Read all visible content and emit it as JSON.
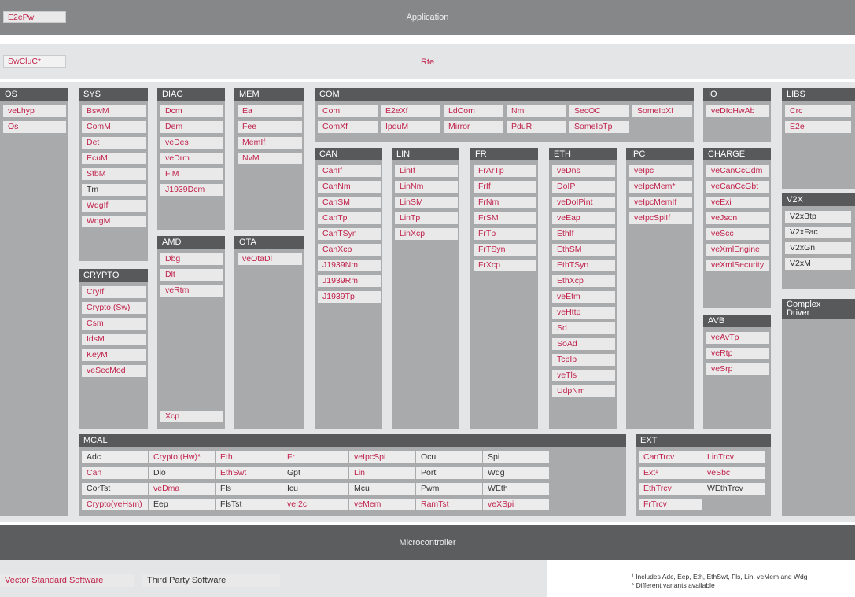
{
  "colors": {
    "vector": "#c0234b",
    "third_party": "#333333",
    "header": "#58595b",
    "panel": "#a8aaac",
    "band_dark": "#858789",
    "band_light": "#e4e5e6",
    "micro": "#5b5d5f"
  },
  "bands": {
    "application": {
      "title": "Application",
      "corner": "E2ePw"
    },
    "rte": {
      "title": "Rte",
      "corner": "SwCluC*"
    },
    "microcontroller": {
      "title": "Microcontroller"
    }
  },
  "legend": {
    "vector": "Vector Standard Software",
    "third_party": "Third Party Software"
  },
  "footnotes": [
    "¹ Includes Adc, Eep, Eth, EthSwt, Fls, Lin, veMem and Wdg",
    "* Different variants available"
  ],
  "modules": {
    "OS": {
      "header": "OS",
      "items": [
        [
          "veLhyp",
          "v"
        ],
        [
          "Os",
          "v"
        ]
      ]
    },
    "SYS": {
      "header": "SYS",
      "items": [
        [
          "BswM",
          "v"
        ],
        [
          "ComM",
          "v"
        ],
        [
          "Det",
          "v"
        ],
        [
          "EcuM",
          "v"
        ],
        [
          "StbM",
          "v"
        ],
        [
          "Tm",
          "t"
        ],
        [
          "WdgIf",
          "v"
        ],
        [
          "WdgM",
          "v"
        ]
      ]
    },
    "CRYPTO": {
      "header": "CRYPTO",
      "items": [
        [
          "CryIf",
          "v"
        ],
        [
          "Crypto (Sw)",
          "v"
        ],
        [
          "Csm",
          "v"
        ],
        [
          "IdsM",
          "v"
        ],
        [
          "KeyM",
          "v"
        ],
        [
          "veSecMod",
          "v"
        ]
      ]
    },
    "DIAG": {
      "header": "DIAG",
      "items": [
        [
          "Dcm",
          "v"
        ],
        [
          "Dem",
          "v"
        ],
        [
          "veDes",
          "v"
        ],
        [
          "veDrm",
          "v"
        ],
        [
          "FiM",
          "v"
        ],
        [
          "J1939Dcm",
          "v"
        ]
      ]
    },
    "AMD": {
      "header": "AMD",
      "items": [
        [
          "Dbg",
          "v"
        ],
        [
          "Dlt",
          "v"
        ],
        [
          "veRtm",
          "v"
        ]
      ],
      "extra": [
        "Xcp",
        "v"
      ]
    },
    "MEM": {
      "header": "MEM",
      "items": [
        [
          "Ea",
          "v"
        ],
        [
          "Fee",
          "v"
        ],
        [
          "MemIf",
          "v"
        ],
        [
          "NvM",
          "v"
        ]
      ]
    },
    "OTA": {
      "header": "OTA",
      "items": [
        [
          "veOtaDl",
          "v"
        ]
      ]
    },
    "COM": {
      "header": "COM",
      "items": [
        [
          "Com",
          "v"
        ],
        [
          "E2eXf",
          "v"
        ],
        [
          "LdCom",
          "v"
        ],
        [
          "Nm",
          "v"
        ],
        [
          "SecOC",
          "v"
        ],
        [
          "SomeIpXf",
          "v"
        ],
        [
          "ComXf",
          "v"
        ],
        [
          "IpduM",
          "v"
        ],
        [
          "Mirror",
          "v"
        ],
        [
          "PduR",
          "v"
        ],
        [
          "SomeIpTp",
          "v"
        ]
      ]
    },
    "CAN": {
      "header": "CAN",
      "items": [
        [
          "CanIf",
          "v"
        ],
        [
          "CanNm",
          "v"
        ],
        [
          "CanSM",
          "v"
        ],
        [
          "CanTp",
          "v"
        ],
        [
          "CanTSyn",
          "v"
        ],
        [
          "CanXcp",
          "v"
        ],
        [
          "J1939Nm",
          "v"
        ],
        [
          "J1939Rm",
          "v"
        ],
        [
          "J1939Tp",
          "v"
        ]
      ]
    },
    "LIN": {
      "header": "LIN",
      "items": [
        [
          "LinIf",
          "v"
        ],
        [
          "LinNm",
          "v"
        ],
        [
          "LinSM",
          "v"
        ],
        [
          "LinTp",
          "v"
        ],
        [
          "LinXcp",
          "v"
        ]
      ]
    },
    "FR": {
      "header": "FR",
      "items": [
        [
          "FrArTp",
          "v"
        ],
        [
          "FrIf",
          "v"
        ],
        [
          "FrNm",
          "v"
        ],
        [
          "FrSM",
          "v"
        ],
        [
          "FrTp",
          "v"
        ],
        [
          "FrTSyn",
          "v"
        ],
        [
          "FrXcp",
          "v"
        ]
      ]
    },
    "ETH": {
      "header": "ETH",
      "items": [
        [
          "veDns",
          "v"
        ],
        [
          "DoIP",
          "v"
        ],
        [
          "veDoIPint",
          "v"
        ],
        [
          "veEap",
          "v"
        ],
        [
          "EthIf",
          "v"
        ],
        [
          "EthSM",
          "v"
        ],
        [
          "EthTSyn",
          "v"
        ],
        [
          "EthXcp",
          "v"
        ],
        [
          "veEtm",
          "v"
        ],
        [
          "veHttp",
          "v"
        ],
        [
          "Sd",
          "v"
        ],
        [
          "SoAd",
          "v"
        ],
        [
          "TcpIp",
          "v"
        ],
        [
          "veTls",
          "v"
        ],
        [
          "UdpNm",
          "v"
        ]
      ]
    },
    "IPC": {
      "header": "IPC",
      "items": [
        [
          "veIpc",
          "v"
        ],
        [
          "veIpcMem*",
          "v"
        ],
        [
          "veIpcMemIf",
          "v"
        ],
        [
          "veIpcSpiIf",
          "v"
        ]
      ]
    },
    "IO": {
      "header": "IO",
      "items": [
        [
          "veDIoHwAb",
          "v"
        ]
      ]
    },
    "CHARGE": {
      "header": "CHARGE",
      "items": [
        [
          "veCanCcCdm",
          "v"
        ],
        [
          "veCanCcGbt",
          "v"
        ],
        [
          "veExi",
          "v"
        ],
        [
          "veJson",
          "v"
        ],
        [
          "veScc",
          "v"
        ],
        [
          "veXmlEngine",
          "v"
        ],
        [
          "veXmlSecurity",
          "v"
        ]
      ]
    },
    "AVB": {
      "header": "AVB",
      "items": [
        [
          "veAvTp",
          "v"
        ],
        [
          "veRtp",
          "v"
        ],
        [
          "veSrp",
          "v"
        ]
      ]
    },
    "LIBS": {
      "header": "LIBS",
      "items": [
        [
          "Crc",
          "v"
        ],
        [
          "E2e",
          "v"
        ]
      ]
    },
    "V2X": {
      "header": "V2X",
      "items": [
        [
          "V2xBtp",
          "t"
        ],
        [
          "V2xFac",
          "t"
        ],
        [
          "V2xGn",
          "t"
        ],
        [
          "V2xM",
          "t"
        ]
      ]
    },
    "CDRV": {
      "header": "Complex Driver",
      "items": []
    },
    "MCAL": {
      "header": "MCAL",
      "rows": [
        [
          [
            "Adc",
            "t"
          ],
          [
            "Crypto (Hw)*",
            "v"
          ],
          [
            "Eth",
            "v"
          ],
          [
            "Fr",
            "v"
          ],
          [
            "veIpcSpi",
            "v"
          ],
          [
            "Ocu",
            "t"
          ],
          [
            "Spi",
            "t"
          ]
        ],
        [
          [
            "Can",
            "v"
          ],
          [
            "Dio",
            "t"
          ],
          [
            "EthSwt",
            "v"
          ],
          [
            "Gpt",
            "t"
          ],
          [
            "Lin",
            "v"
          ],
          [
            "Port",
            "t"
          ],
          [
            "Wdg",
            "t"
          ]
        ],
        [
          [
            "CorTst",
            "t"
          ],
          [
            "veDma",
            "v"
          ],
          [
            "Fls",
            "t"
          ],
          [
            "Icu",
            "t"
          ],
          [
            "Mcu",
            "t"
          ],
          [
            "Pwm",
            "t"
          ],
          [
            "WEth",
            "t"
          ]
        ],
        [
          [
            "Crypto(veHsm)",
            "v"
          ],
          [
            "Eep",
            "t"
          ],
          [
            "FlsTst",
            "t"
          ],
          [
            "veI2c",
            "v"
          ],
          [
            "veMem",
            "v"
          ],
          [
            "RamTst",
            "v"
          ],
          [
            "veXSpi",
            "v"
          ]
        ]
      ]
    },
    "EXT": {
      "header": "EXT",
      "rows": [
        [
          [
            "CanTrcv",
            "v"
          ],
          [
            "LinTrcv",
            "v"
          ]
        ],
        [
          [
            "Ext¹",
            "v"
          ],
          [
            "veSbc",
            "v"
          ]
        ],
        [
          [
            "EthTrcv",
            "v"
          ],
          [
            "WEthTrcv",
            "t"
          ]
        ],
        [
          [
            "FrTrcv",
            "v"
          ]
        ]
      ]
    }
  }
}
